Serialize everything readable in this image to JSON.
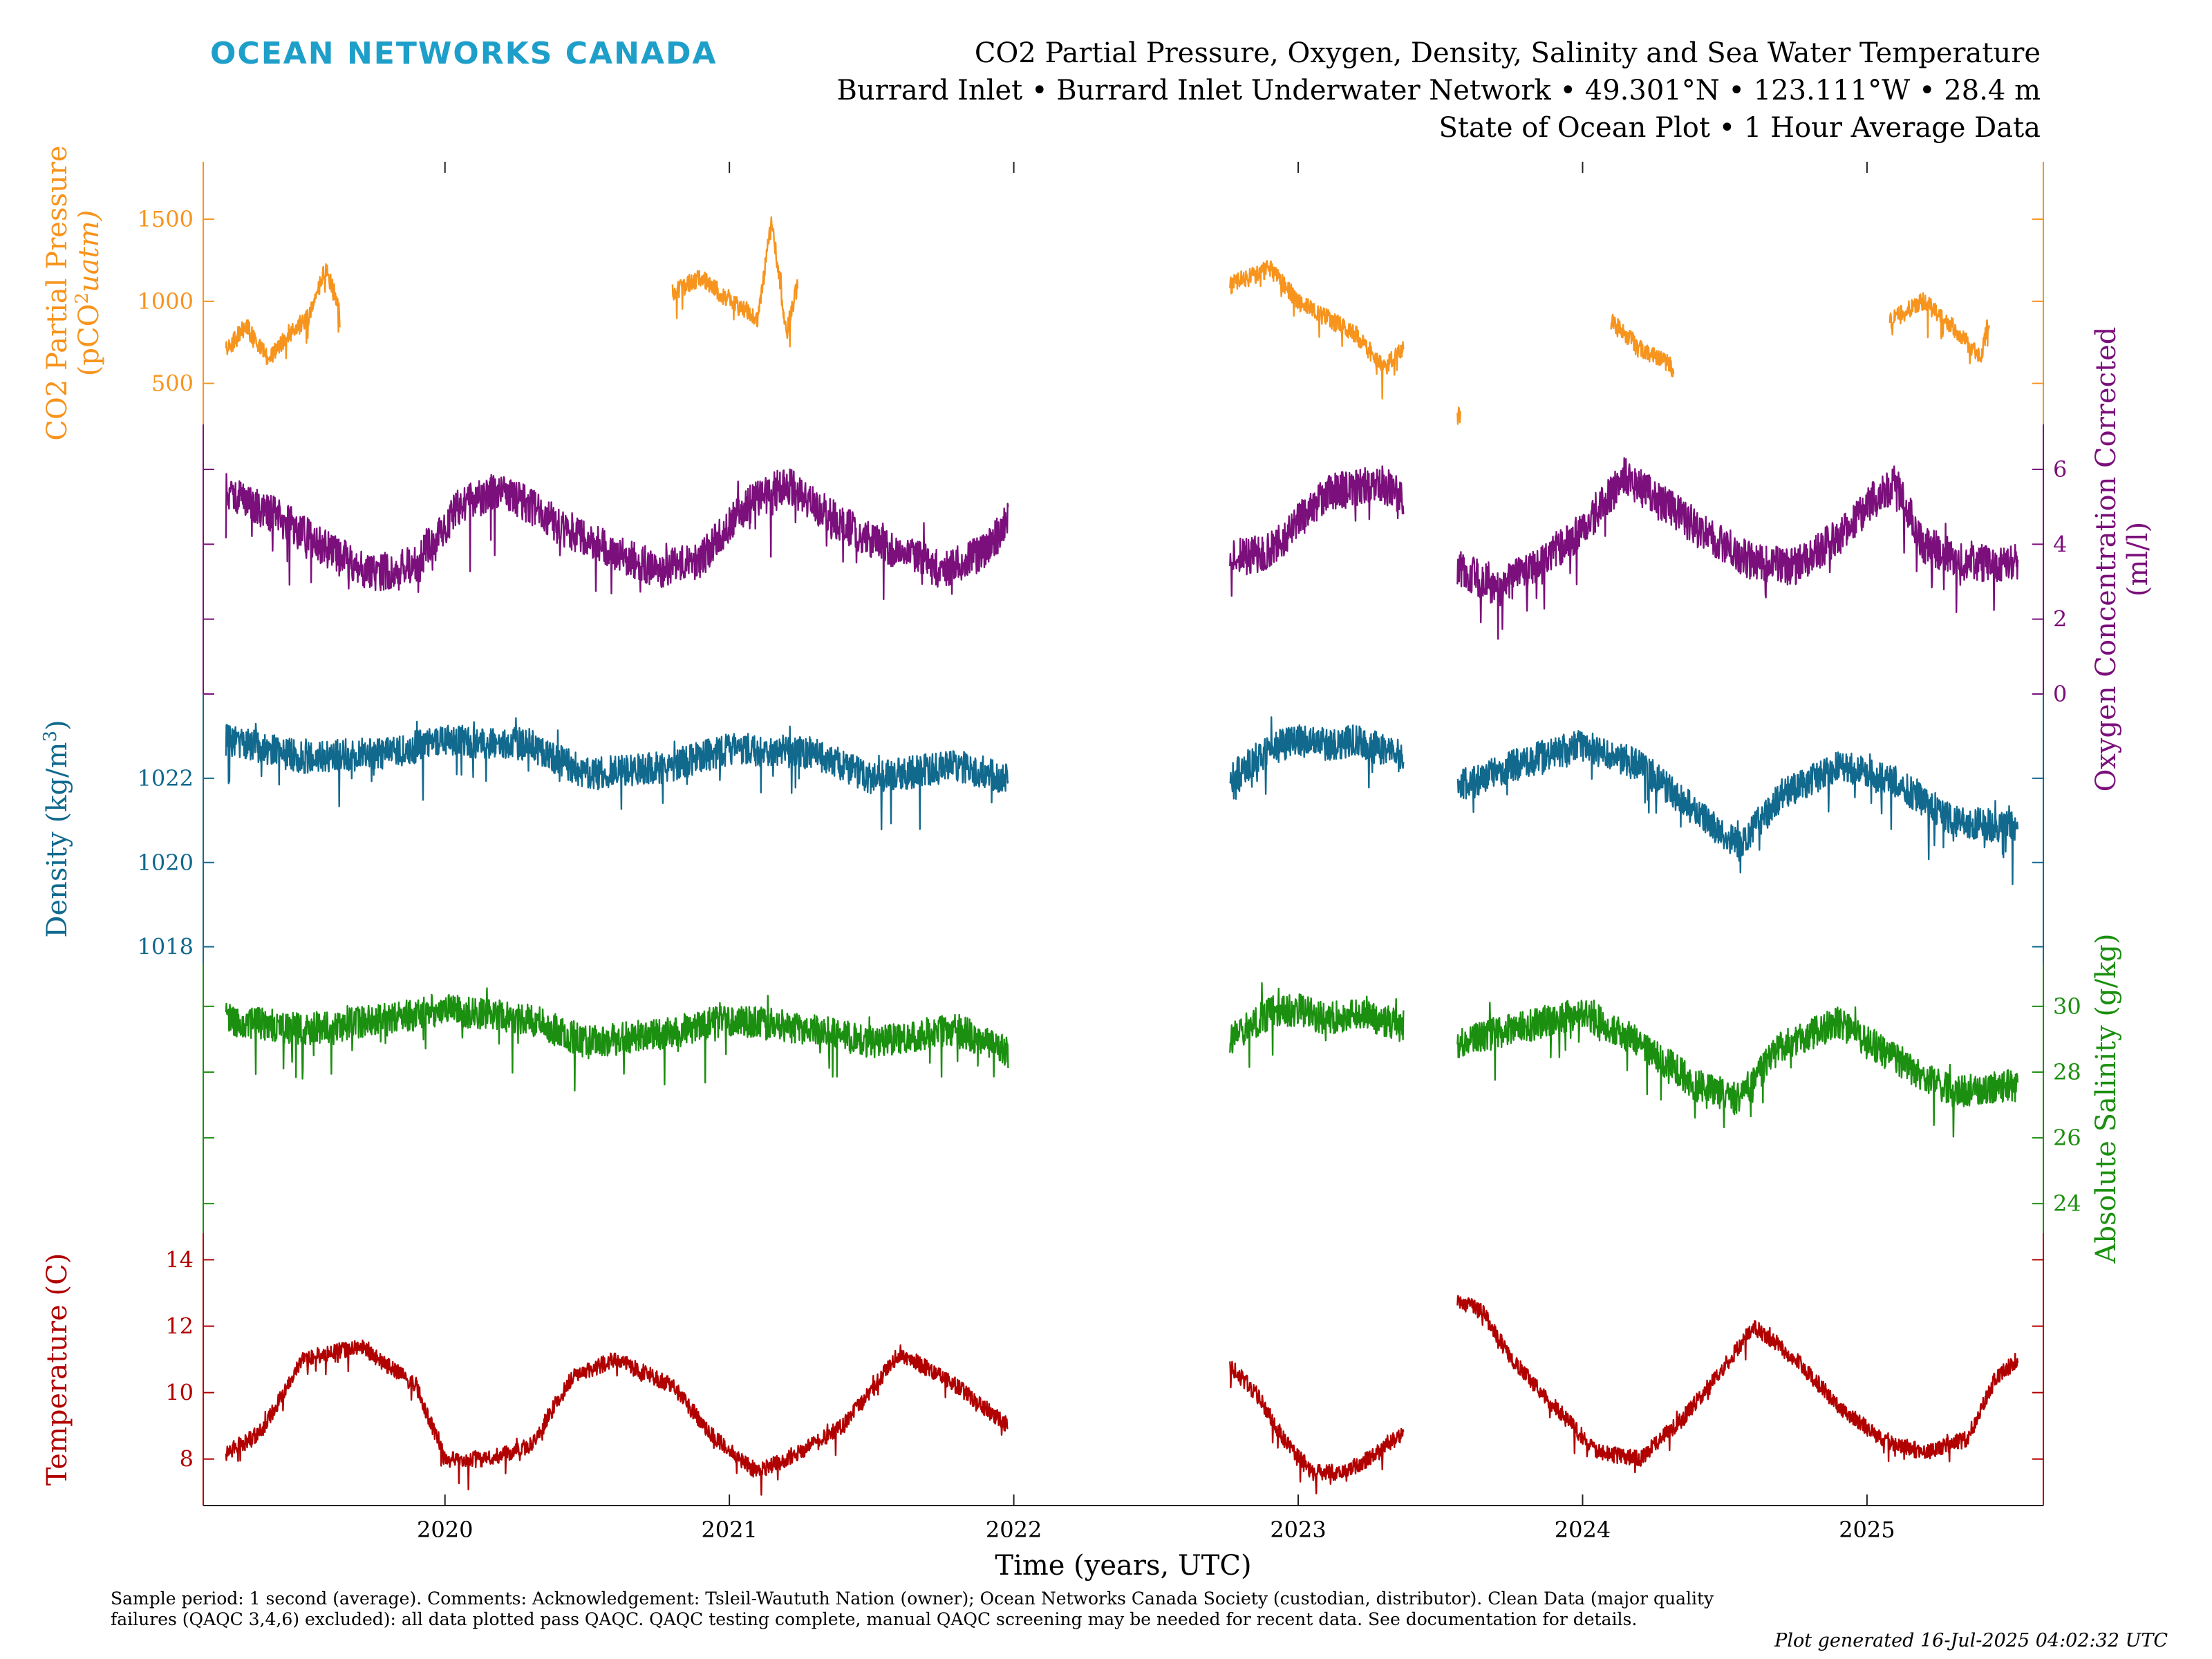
{
  "logo": "OCEAN NETWORKS CANADA",
  "title": {
    "line1": "CO2 Partial Pressure, Oxygen, Density, Salinity and Sea Water Temperature",
    "line2": "Burrard Inlet • Burrard Inlet Underwater Network • 49.301°N • 123.111°W • 28.4 m",
    "line3": "State of Ocean Plot • 1 Hour Average Data"
  },
  "colors": {
    "co2": "#f7941d",
    "oxygen": "#7b0f7b",
    "density": "#11698e",
    "salinity": "#1b8f0f",
    "temperature": "#b10000",
    "logo": "#1d9fc9"
  },
  "chart_data": {
    "type": "line",
    "xlabel": "Time (years, UTC)",
    "xticks": [
      "2020",
      "2021",
      "2022",
      "2023",
      "2024",
      "2025"
    ],
    "xlim": [
      2019.15,
      2025.62
    ],
    "panels": [
      {
        "key": "co2",
        "ylabel_line1": "CO2 Partial Pressure",
        "ylabel_line2": "(pCO",
        "ylabel_sup": "2",
        "ylabel_unit": "uatm)",
        "axis_side": "left",
        "ylim": [
          250,
          1850
        ],
        "yticks": [
          500,
          1000,
          1500
        ],
        "segments": [
          {
            "x": [
              2019.23,
              2019.3,
              2019.38,
              2019.45,
              2019.52,
              2019.58,
              2019.63
            ],
            "y": [
              700,
              850,
              650,
              800,
              900,
              1200,
              950
            ]
          },
          {
            "x": [
              2020.8,
              2020.9,
              2021.0,
              2021.1,
              2021.15,
              2021.2,
              2021.24
            ],
            "y": [
              1050,
              1150,
              1000,
              900,
              1500,
              800,
              1100
            ]
          },
          {
            "x": [
              2022.76,
              2022.9,
              2023.0,
              2023.1,
              2023.2,
              2023.3,
              2023.37
            ],
            "y": [
              1100,
              1200,
              1000,
              900,
              800,
              600,
              700
            ]
          },
          {
            "x": [
              2023.56,
              2023.57
            ],
            "y": [
              300,
              320
            ]
          },
          {
            "x": [
              2024.1,
              2024.2,
              2024.3,
              2024.32
            ],
            "y": [
              880,
              720,
              620,
              580
            ]
          },
          {
            "x": [
              2025.08,
              2025.2,
              2025.3,
              2025.4,
              2025.43
            ],
            "y": [
              880,
              1000,
              850,
              650,
              900
            ]
          }
        ]
      },
      {
        "key": "oxygen",
        "ylabel_line1": "Oxygen Concentration Corrected",
        "ylabel_line2": "(ml/l)",
        "axis_side": "right",
        "ylim": [
          0,
          7.2
        ],
        "yticks": [
          0,
          2,
          4,
          6
        ],
        "segments": [
          {
            "x": [
              2019.23,
              2019.4,
              2019.6,
              2019.75,
              2019.9,
              2020.05,
              2020.2,
              2020.4,
              2020.6,
              2020.75,
              2020.9,
              2021.05,
              2021.2,
              2021.4,
              2021.6,
              2021.75,
              2021.9,
              2021.98
            ],
            "y": [
              5.4,
              4.8,
              3.8,
              3.2,
              3.5,
              5.0,
              5.5,
              4.5,
              3.8,
              3.3,
              3.6,
              5.0,
              5.6,
              4.5,
              3.8,
              3.3,
              3.8,
              4.6
            ]
          },
          {
            "x": [
              2022.76,
              2022.9,
              2023.0,
              2023.1,
              2023.2,
              2023.3,
              2023.37
            ],
            "y": [
              3.6,
              3.8,
              4.6,
              5.4,
              5.5,
              5.6,
              5.2
            ]
          },
          {
            "x": [
              2023.56,
              2023.7,
              2023.85,
              2024.0,
              2024.15,
              2024.3,
              2024.45,
              2024.6,
              2024.75,
              2024.9,
              2025.05,
              2025.1,
              2025.2,
              2025.35,
              2025.53
            ],
            "y": [
              3.4,
              2.8,
              3.5,
              4.4,
              5.8,
              5.0,
              4.2,
              3.5,
              3.4,
              4.2,
              5.4,
              5.6,
              4.0,
              3.5,
              3.5
            ]
          }
        ]
      },
      {
        "key": "density",
        "ylabel_line1": "Density (kg/m",
        "ylabel_sup": "3",
        "ylabel_unit": ")",
        "axis_side": "left",
        "ylim": [
          1017.6,
          1024.0
        ],
        "yticks": [
          1018,
          1020,
          1022
        ],
        "segments": [
          {
            "x": [
              2019.23,
              2019.5,
              2019.8,
              2020.0,
              2020.3,
              2020.5,
              2020.8,
              2021.0,
              2021.3,
              2021.5,
              2021.8,
              2021.98
            ],
            "y": [
              1022.9,
              1022.5,
              1022.6,
              1022.9,
              1022.8,
              1022.1,
              1022.3,
              1022.7,
              1022.6,
              1022.0,
              1022.3,
              1022.0
            ]
          },
          {
            "x": [
              2022.76,
              2022.9,
              2023.0,
              2023.1,
              2023.2,
              2023.37
            ],
            "y": [
              1022.0,
              1022.7,
              1022.9,
              1022.8,
              1022.9,
              1022.5
            ]
          },
          {
            "x": [
              2023.56,
              2023.8,
              2024.0,
              2024.2,
              2024.4,
              2024.55,
              2024.7,
              2024.9,
              2025.1,
              2025.3,
              2025.53
            ],
            "y": [
              1021.8,
              1022.4,
              1022.8,
              1022.3,
              1021.2,
              1020.4,
              1021.6,
              1022.3,
              1021.9,
              1021.0,
              1020.8
            ]
          }
        ]
      },
      {
        "key": "salinity",
        "ylabel_line1": "Absolute Salinity (g/kg)",
        "axis_side": "right",
        "ylim": [
          23.1,
          31.3
        ],
        "yticks": [
          24,
          26,
          28,
          30
        ],
        "segments": [
          {
            "x": [
              2019.23,
              2019.5,
              2019.8,
              2020.0,
              2020.3,
              2020.5,
              2020.8,
              2021.0,
              2021.3,
              2021.5,
              2021.8,
              2021.98
            ],
            "y": [
              29.6,
              29.3,
              29.6,
              29.9,
              29.6,
              28.9,
              29.2,
              29.6,
              29.3,
              28.9,
              29.3,
              28.6
            ]
          },
          {
            "x": [
              2022.76,
              2022.9,
              2023.0,
              2023.1,
              2023.2,
              2023.37
            ],
            "y": [
              29.0,
              29.8,
              29.9,
              29.6,
              29.8,
              29.4
            ]
          },
          {
            "x": [
              2023.56,
              2023.8,
              2024.0,
              2024.2,
              2024.4,
              2024.55,
              2024.7,
              2024.9,
              2025.1,
              2025.3,
              2025.53
            ],
            "y": [
              28.9,
              29.4,
              29.8,
              28.9,
              27.6,
              27.2,
              28.8,
              29.5,
              28.4,
              27.4,
              27.6
            ]
          }
        ]
      },
      {
        "key": "temperature",
        "ylabel_line1": "Temperature (C)",
        "axis_side": "left",
        "ylim": [
          6.6,
          14.8
        ],
        "yticks": [
          8,
          10,
          12,
          14
        ],
        "segments": [
          {
            "x": [
              2019.23,
              2019.35,
              2019.5,
              2019.7,
              2019.9,
              2020.0,
              2020.15,
              2020.3,
              2020.45,
              2020.6,
              2020.8,
              2020.95,
              2021.1,
              2021.25,
              2021.4,
              2021.6,
              2021.8,
              2021.98
            ],
            "y": [
              8.2,
              8.8,
              11.0,
              11.4,
              10.2,
              8.0,
              8.0,
              8.4,
              10.5,
              11.0,
              10.2,
              8.6,
              7.6,
              8.2,
              9.0,
              11.2,
              10.2,
              9.0
            ]
          },
          {
            "x": [
              2022.76,
              2022.85,
              2022.95,
              2023.05,
              2023.15,
              2023.25,
              2023.37
            ],
            "y": [
              10.8,
              10.0,
              8.6,
              7.6,
              7.6,
              8.0,
              8.8
            ]
          },
          {
            "x": [
              2023.56,
              2023.65,
              2023.75,
              2023.9,
              2024.05,
              2024.2,
              2024.35,
              2024.5,
              2024.6,
              2024.75,
              2024.9,
              2025.05,
              2025.2,
              2025.35,
              2025.45,
              2025.53
            ],
            "y": [
              12.8,
              12.4,
              11.0,
              9.6,
              8.2,
              8.0,
              9.2,
              10.8,
              12.0,
              11.0,
              9.6,
              8.6,
              8.2,
              8.6,
              10.4,
              11.0
            ]
          }
        ]
      }
    ]
  },
  "footer": {
    "note": "Sample period: 1 second (average). Comments: Acknowledgement: Tsleil-Waututh Nation (owner); Ocean Networks Canada Society (custodian, distributor). Clean Data (major quality failures (QAQC 3,4,6) excluded): all data plotted pass QAQC. QAQC testing complete, manual QAQC screening may be needed for recent data. See documentation for details.",
    "generated": "Plot generated 16-Jul-2025 04:02:32 UTC"
  }
}
